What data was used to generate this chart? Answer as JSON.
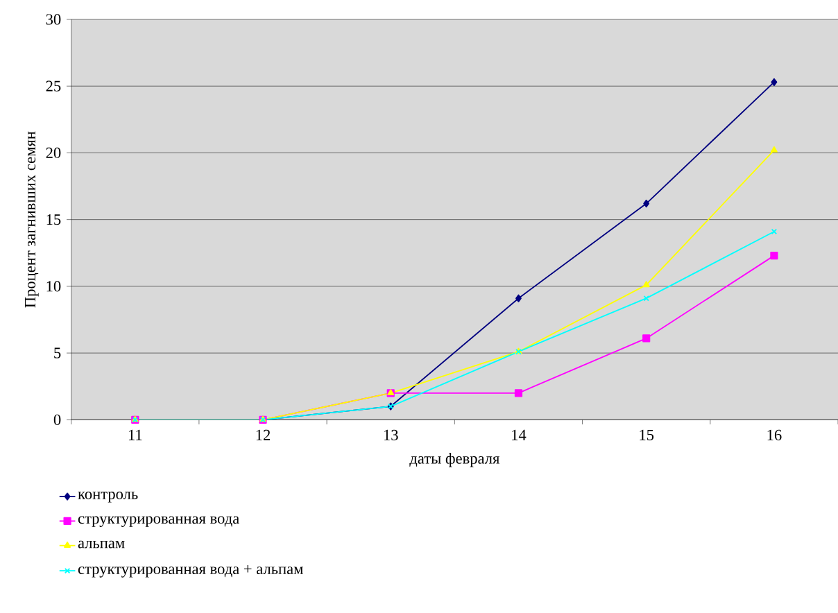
{
  "chart_data": {
    "type": "line",
    "xlabel": "даты февраля",
    "ylabel": "Процент загнивших семян",
    "categories": [
      "11",
      "12",
      "13",
      "14",
      "15",
      "16"
    ],
    "series": [
      {
        "name": "контроль",
        "color": "#000080",
        "marker": "diamond",
        "values": [
          0,
          0,
          1,
          9.1,
          16.2,
          25.3
        ]
      },
      {
        "name": "структурированная вода",
        "color": "#ff00ff",
        "marker": "square",
        "values": [
          0,
          0,
          2,
          2,
          6.1,
          12.3
        ]
      },
      {
        "name": "альпам",
        "color": "#ffff00",
        "marker": "triangle",
        "values": [
          0,
          0,
          2,
          5.1,
          10.1,
          20.2
        ]
      },
      {
        "name": "структурированная вода + альпам",
        "color": "#00ffff",
        "marker": "cross",
        "values": [
          0,
          0,
          1,
          5.1,
          9.1,
          14.1
        ]
      }
    ],
    "ylim": [
      0,
      30
    ],
    "yticks": [
      0,
      5,
      10,
      15,
      20,
      25,
      30
    ],
    "grid": "y",
    "legend": "bottom left"
  }
}
